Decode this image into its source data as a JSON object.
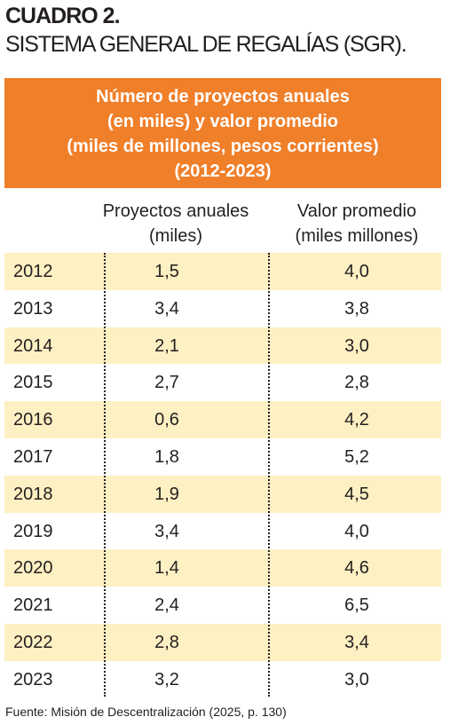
{
  "header": {
    "title": "CUADRO 2.",
    "subtitle": "SISTEMA GENERAL DE REGALÍAS (SGR)."
  },
  "table": {
    "caption": [
      "Número de proyectos anuales",
      "(en miles) y valor promedio",
      "(miles de millones, pesos corrientes)",
      "(2012-2023)"
    ],
    "columns": [
      [
        "Proyectos anuales",
        "(miles)"
      ],
      [
        "Valor promedio",
        "(miles millones)"
      ]
    ],
    "rows": [
      [
        "2012",
        "1,5",
        "4,0"
      ],
      [
        "2013",
        "3,4",
        "3,8"
      ],
      [
        "2014",
        "2,1",
        "3,0"
      ],
      [
        "2015",
        "2,7",
        "2,8"
      ],
      [
        "2016",
        "0,6",
        "4,2"
      ],
      [
        "2017",
        "1,8",
        "5,2"
      ],
      [
        "2018",
        "1,9",
        "4,5"
      ],
      [
        "2019",
        "3,4",
        "4,0"
      ],
      [
        "2020",
        "1,4",
        "4,6"
      ],
      [
        "2021",
        "2,4",
        "6,5"
      ],
      [
        "2022",
        "2,8",
        "3,4"
      ],
      [
        "2023",
        "3,2",
        "3,0"
      ]
    ]
  },
  "footer": "Fuente: Misión de Descentralización (2025, p. 130)"
}
